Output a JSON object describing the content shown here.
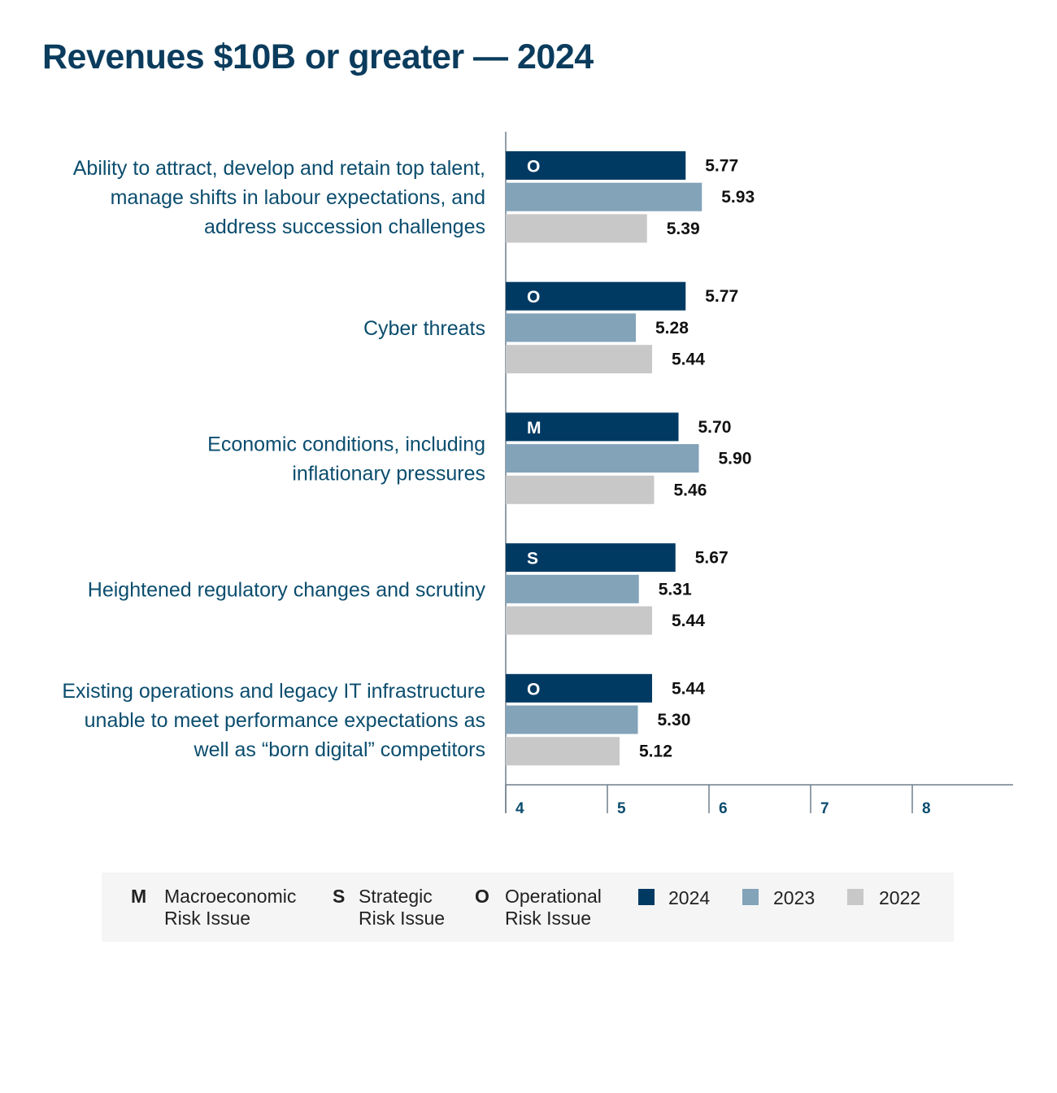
{
  "title": "Revenues $10B or greater — 2024",
  "colors": {
    "y2024": "#003a63",
    "y2023": "#82a3b8",
    "y2022": "#c8c8c8",
    "label": "#0b4d6e",
    "axis": "#6f7f8c",
    "value": "#111111",
    "code": "#ffffff"
  },
  "chart_data": {
    "type": "bar",
    "orientation": "horizontal",
    "title": "Revenues $10B or greater — 2024",
    "xlim": [
      4,
      9
    ],
    "xticks": [
      4,
      5,
      6,
      7,
      8
    ],
    "grid": false,
    "legend_position": "bottom",
    "categories": [
      {
        "lines": [
          "Ability to attract, develop and retain top talent,",
          "manage shifts in labour expectations, and",
          "address succession challenges"
        ],
        "code": "O"
      },
      {
        "lines": [
          "Cyber threats"
        ],
        "code": "O"
      },
      {
        "lines": [
          "Economic conditions, including",
          "inflationary pressures"
        ],
        "code": "M"
      },
      {
        "lines": [
          "Heightened regulatory changes and scrutiny"
        ],
        "code": "S"
      },
      {
        "lines": [
          "Existing operations and legacy IT infrastructure",
          "unable to meet performance expectations as",
          "well as “born digital” competitors"
        ],
        "code": "O"
      }
    ],
    "series": [
      {
        "name": "2024",
        "values": [
          "5.77",
          "5.77",
          "5.70",
          "5.67",
          "5.44"
        ]
      },
      {
        "name": "2023",
        "values": [
          "5.93",
          "5.28",
          "5.90",
          "5.31",
          "5.30"
        ]
      },
      {
        "name": "2022",
        "values": [
          "5.39",
          "5.44",
          "5.46",
          "5.44",
          "5.12"
        ]
      }
    ]
  },
  "legend": {
    "types": [
      {
        "letter": "M",
        "line1": "Macroeconomic",
        "line2": "Risk Issue"
      },
      {
        "letter": "S",
        "line1": "Strategic",
        "line2": "Risk Issue"
      },
      {
        "letter": "O",
        "line1": "Operational",
        "line2": "Risk Issue"
      }
    ],
    "years": [
      "2024",
      "2023",
      "2022"
    ]
  }
}
